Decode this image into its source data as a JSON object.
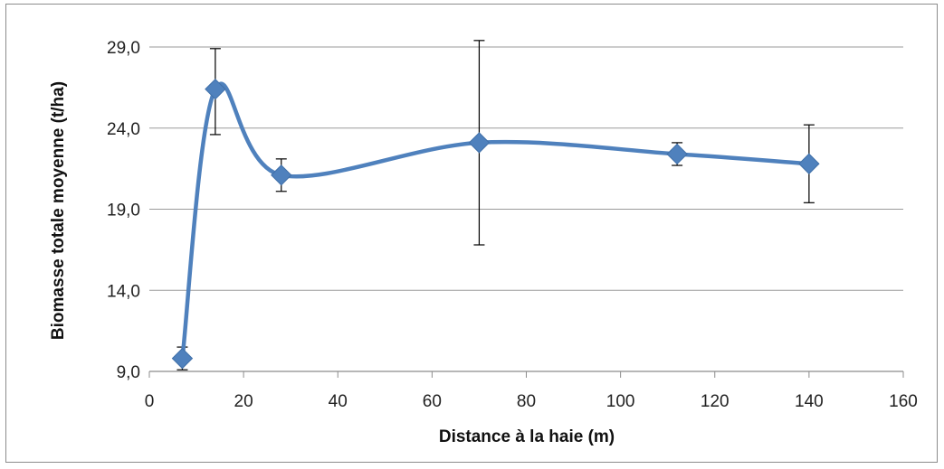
{
  "chart_data": {
    "type": "scatter",
    "title": "",
    "xlabel": "Distance à la haie (m)",
    "ylabel": "Biomasse totale moyenne (t/ha)",
    "xlim": [
      0,
      160
    ],
    "ylim": [
      9,
      31.5
    ],
    "x_ticks": [
      "0",
      "20",
      "40",
      "60",
      "80",
      "100",
      "120",
      "140",
      "160"
    ],
    "y_ticks": [
      "9,0",
      "14,0",
      "19,0",
      "24,0",
      "29,0"
    ],
    "grid": "horizontal",
    "legend": "none",
    "series": [
      {
        "color": "#4f81bd",
        "marker": "diamond",
        "line": "smooth",
        "points": [
          {
            "x": 7,
            "y": 9.8,
            "err_low": 9.1,
            "err_high": 10.5
          },
          {
            "x": 14,
            "y": 26.4,
            "err_low": 23.6,
            "err_high": 28.9
          },
          {
            "x": 28,
            "y": 21.1,
            "err_low": 20.1,
            "err_high": 22.1
          },
          {
            "x": 70,
            "y": 23.1,
            "err_low": 16.8,
            "err_high": 29.4
          },
          {
            "x": 112,
            "y": 22.4,
            "err_low": 21.7,
            "err_high": 23.1
          },
          {
            "x": 140,
            "y": 21.8,
            "err_low": 19.4,
            "err_high": 24.2
          }
        ]
      }
    ]
  }
}
